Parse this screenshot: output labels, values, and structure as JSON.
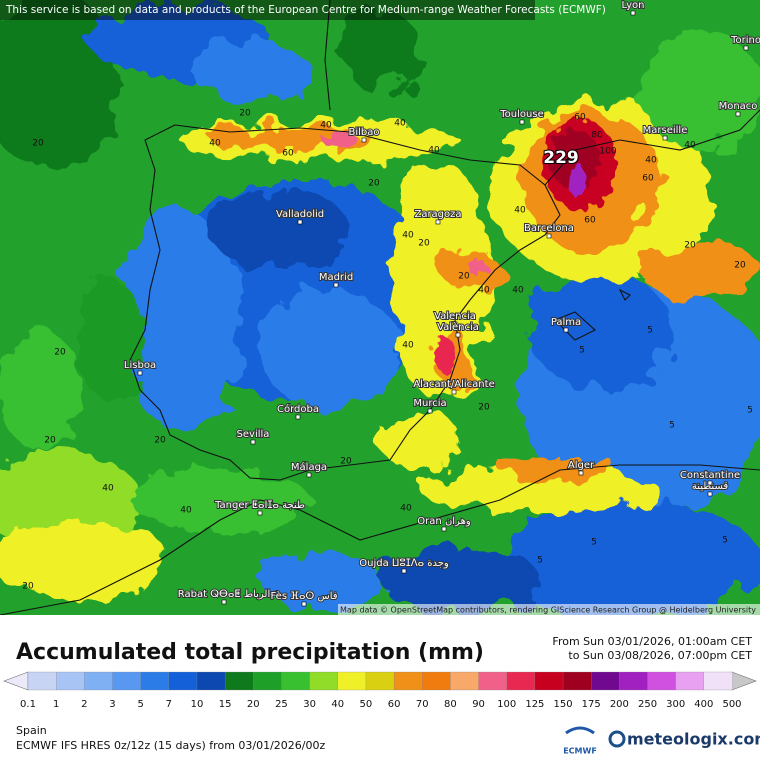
{
  "banner": "This service is based on data and products of the European Centre for Medium-range Weather Forecasts (ECMWF)",
  "attribution": "Map data © OpenStreetMap contributors, rendering GIScience Research Group @ Heidelberg University",
  "max_label": "229",
  "cities": [
    "Lyon",
    "Torino",
    "Monaco",
    "Toulouse",
    "Marseille",
    "Bilbao",
    "Valladolid",
    "Zaragoza",
    "Barcelona",
    "Madrid",
    "Palma",
    "Valencia",
    "València",
    "Lisboa",
    "Alacant/Alicante",
    "Murcia",
    "Córdoba",
    "Sevilla",
    "Alger",
    "Constantine",
    "قسنطينة",
    "Málaga",
    "Tanger ⵟⴰⵏⵊⴰ طنجة",
    "Oran وهران",
    "Oujda ⵡⵓⵊⴷⴰ وجدة",
    "Rabat ⵕⴱⴰⵟ الرباط",
    "Fès ⴼⴰⵙ فاس"
  ],
  "contour_labels": [
    "20",
    "40",
    "60",
    "40",
    "20",
    "40",
    "40",
    "20",
    "60",
    "80",
    "100",
    "60",
    "40",
    "60",
    "40",
    "20",
    "40",
    "40",
    "20",
    "40",
    "20",
    "40",
    "20",
    "20",
    "40",
    "5",
    "5",
    "5",
    "20",
    "5",
    "5",
    "20",
    "40",
    "40",
    "20",
    "40",
    "20",
    "20",
    "5",
    "5"
  ],
  "title": "Accumulated total precipitation (mm)",
  "date_from": "From Sun 03/01/2026, 01:00am CET",
  "date_to": "to Sun 03/08/2026, 07:00pm CET",
  "legend": {
    "labels": [
      "0.1",
      "1",
      "2",
      "3",
      "5",
      "7",
      "10",
      "15",
      "20",
      "25",
      "30",
      "40",
      "50",
      "60",
      "70",
      "80",
      "90",
      "100",
      "125",
      "150",
      "175",
      "200",
      "250",
      "300",
      "400",
      "500"
    ],
    "colors": [
      "#c8d4f4",
      "#a8c4f4",
      "#80b0f4",
      "#5898f0",
      "#2c7ce8",
      "#1460d8",
      "#0c48b0",
      "#0e7a1c",
      "#1ea028",
      "#38c030",
      "#90dc28",
      "#f0f028",
      "#d8d010",
      "#f09018",
      "#f07c10",
      "#f8a868",
      "#f06088",
      "#e82850",
      "#c80020",
      "#a00020",
      "#700890",
      "#a020c0",
      "#d050e0",
      "#e8a0f0",
      "#f0e0f8"
    ]
  },
  "region": "Spain",
  "model_line": "ECMWF IFS HRES 0z/12z (15 days) from 03/01/2026/00z",
  "ecmwf_logo": "ECMWF",
  "brand": "meteologix.com"
}
